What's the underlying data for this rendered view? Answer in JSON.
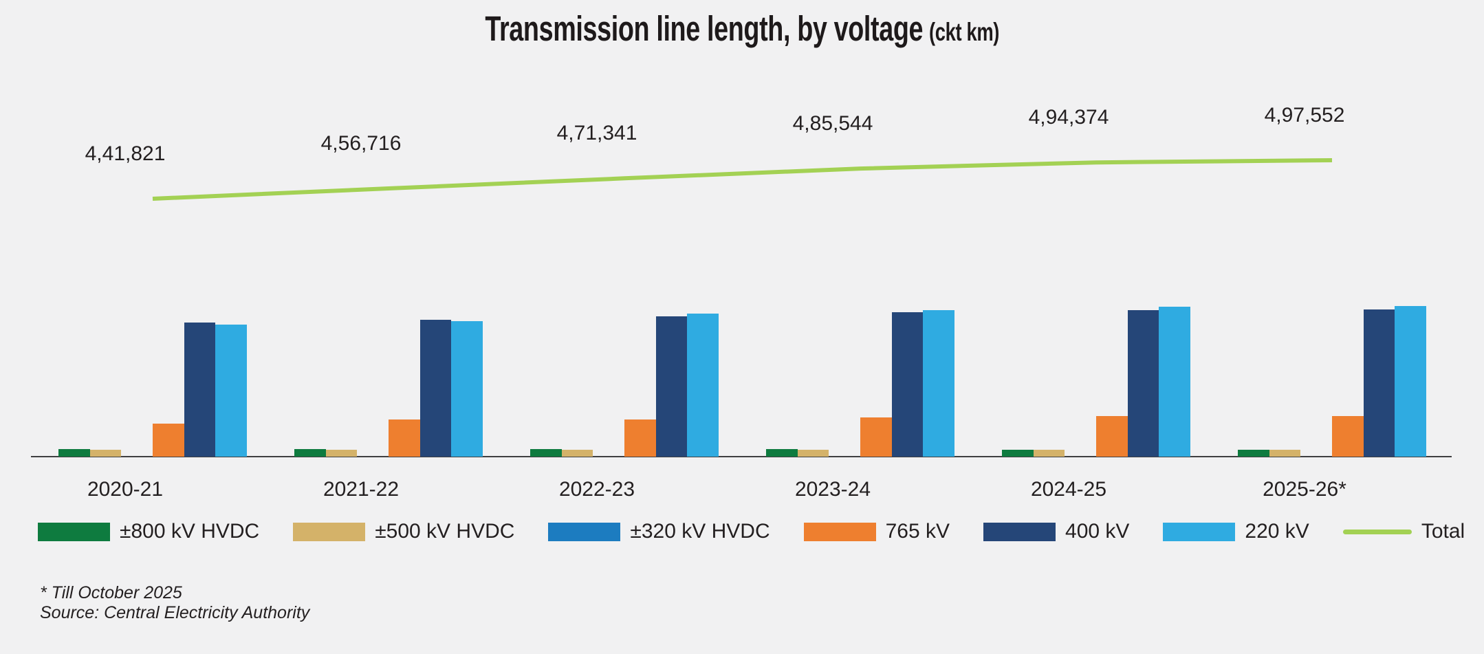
{
  "title": {
    "main": "Transmission line length, by voltage",
    "unit": "(ckt km)"
  },
  "chart_data": {
    "type": "bar",
    "title": "Transmission line length, by voltage (ckt km)",
    "xlabel": "",
    "ylabel": "ckt km",
    "ylim": [
      0,
      230000
    ],
    "grid": false,
    "legend_position": "bottom",
    "categories": [
      "2020-21",
      "2021-22",
      "2022-23",
      "2023-24",
      "2024-25",
      "2025-26*"
    ],
    "series": [
      {
        "name": "±800 kV HVDC",
        "color": "#0e7b3f",
        "values": [
          10600,
          10600,
          10600,
          10600,
          10000,
          10000
        ]
      },
      {
        "name": "±500 kV HVDC",
        "color": "#d4b269",
        "values": [
          9430,
          9430,
          9430,
          9430,
          9430,
          9430
        ]
      },
      {
        "name": "±320 kV HVDC",
        "color": "#1c7cc0",
        "values": [
          0,
          0,
          0,
          0,
          0,
          0
        ]
      },
      {
        "name": "765 kV",
        "color": "#ee7f2f",
        "values": [
          46500,
          52300,
          52400,
          55200,
          57200,
          57300
        ]
      },
      {
        "name": "400 kV",
        "color": "#254678",
        "values": [
          189200,
          193200,
          197500,
          203700,
          206400,
          208000
        ]
      },
      {
        "name": "220 kV",
        "color": "#2fabe1",
        "values": [
          186091,
          191186,
          201411,
          206614,
          211344,
          212822
        ]
      }
    ],
    "line_series": {
      "name": "Total",
      "color": "#a3d154",
      "values": [
        441821,
        456716,
        471341,
        485544,
        494374,
        497552
      ],
      "labels": [
        "4,41,821",
        "4,56,716",
        "4,71,341",
        "4,85,544",
        "4,94,374",
        "4,97,552"
      ]
    }
  },
  "footnotes": [
    "* Till October 2025",
    "Source: Central Electricity Authority"
  ]
}
